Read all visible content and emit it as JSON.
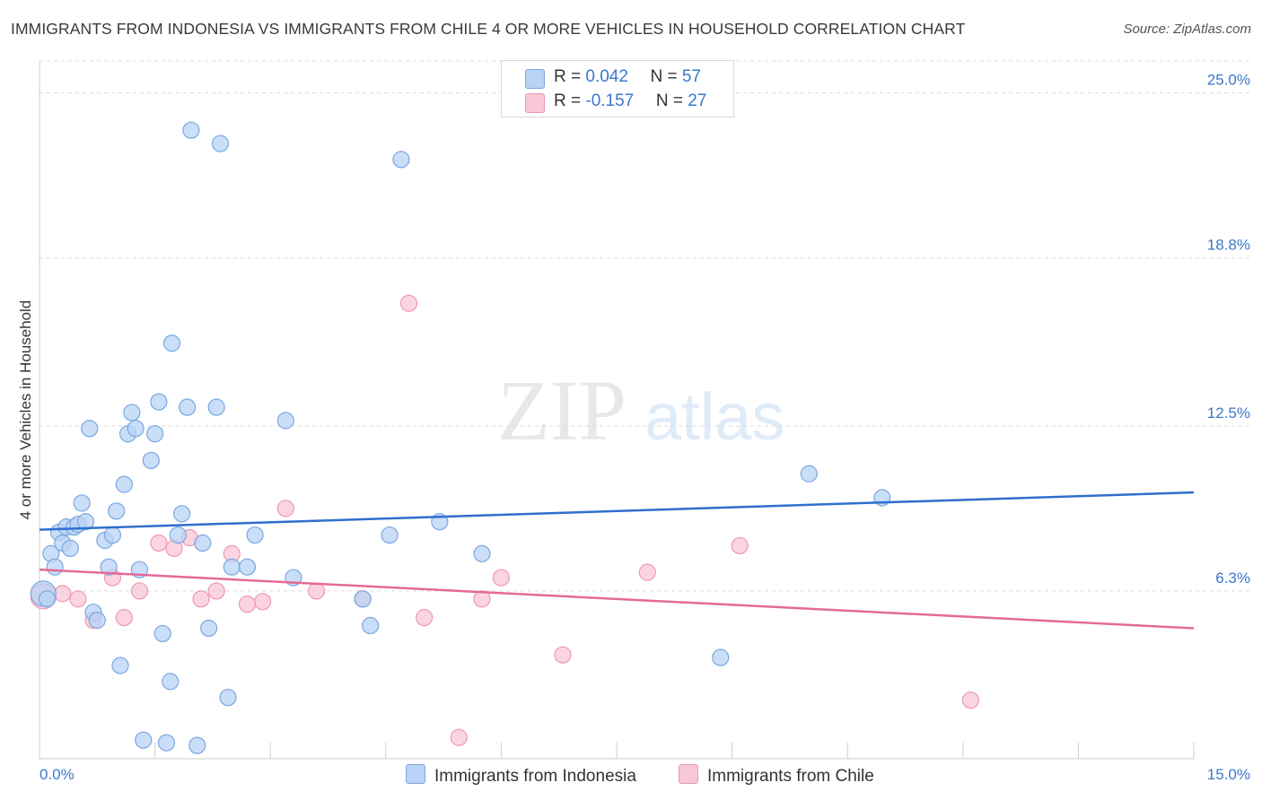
{
  "title": "IMMIGRANTS FROM INDONESIA VS IMMIGRANTS FROM CHILE 4 OR MORE VEHICLES IN HOUSEHOLD CORRELATION CHART",
  "source": "Source: ZipAtlas.com",
  "watermark": {
    "zip": "ZIP",
    "atlas": "atlas"
  },
  "colors": {
    "blue_fill": "#b8d3f5",
    "blue_stroke": "#7ba7e0",
    "blue_line": "#2f6fcf",
    "pink_fill": "#f8c7d6",
    "pink_stroke": "#ee97b3",
    "pink_line": "#e46a96",
    "tick_text": "#3a78c9",
    "grid": "#dcdcdc"
  },
  "legend": {
    "row1": {
      "r_label": "R = ",
      "r_value": "0.042",
      "n_label": "N = ",
      "n_value": "57"
    },
    "row2": {
      "r_label": "R = ",
      "r_value": "-0.157",
      "n_label": "N = ",
      "n_value": "27"
    }
  },
  "bottom_legend": {
    "series1": "Immigrants from Indonesia",
    "series2": "Immigrants from Chile"
  },
  "chart_data": {
    "type": "scatter",
    "title": "IMMIGRANTS FROM INDONESIA VS IMMIGRANTS FROM CHILE 4 OR MORE VEHICLES IN HOUSEHOLD CORRELATION CHART",
    "xlabel": "",
    "ylabel": "4 or more Vehicles in Household",
    "xlim": [
      0,
      15
    ],
    "ylim": [
      0,
      26.2
    ],
    "x_tick_labels": {
      "min": "0.0%",
      "max": "15.0%"
    },
    "y_ticks": [
      6.3,
      12.5,
      18.8,
      25.0
    ],
    "y_tick_labels": [
      "6.3%",
      "12.5%",
      "18.8%",
      "25.0%"
    ],
    "series": [
      {
        "name": "Immigrants from Indonesia",
        "r": 0.042,
        "n": 57,
        "trend": {
          "x": [
            0,
            15
          ],
          "y": [
            8.6,
            10.0
          ]
        },
        "points": [
          [
            0.05,
            6.2,
            14
          ],
          [
            0.15,
            7.7,
            9
          ],
          [
            0.2,
            7.2,
            9
          ],
          [
            0.25,
            8.5,
            9
          ],
          [
            0.3,
            8.1,
            9
          ],
          [
            0.35,
            8.7,
            9
          ],
          [
            0.4,
            7.9,
            9
          ],
          [
            0.45,
            8.7,
            9
          ],
          [
            0.5,
            8.8,
            9
          ],
          [
            0.55,
            9.6,
            9
          ],
          [
            0.6,
            8.9,
            9
          ],
          [
            0.65,
            12.4,
            9
          ],
          [
            0.7,
            5.5,
            9
          ],
          [
            0.75,
            5.2,
            9
          ],
          [
            0.85,
            8.2,
            9
          ],
          [
            0.9,
            7.2,
            9
          ],
          [
            0.95,
            8.4,
            9
          ],
          [
            1.0,
            9.3,
            9
          ],
          [
            1.05,
            3.5,
            9
          ],
          [
            1.1,
            10.3,
            9
          ],
          [
            1.15,
            12.2,
            9
          ],
          [
            1.2,
            13.0,
            9
          ],
          [
            1.25,
            12.4,
            9
          ],
          [
            1.3,
            7.1,
            9
          ],
          [
            1.35,
            0.7,
            9
          ],
          [
            1.45,
            11.2,
            9
          ],
          [
            1.5,
            12.2,
            9
          ],
          [
            1.55,
            13.4,
            9
          ],
          [
            1.6,
            4.7,
            9
          ],
          [
            1.65,
            0.6,
            9
          ],
          [
            1.7,
            2.9,
            9
          ],
          [
            1.72,
            15.6,
            9
          ],
          [
            1.8,
            8.4,
            9
          ],
          [
            1.85,
            9.2,
            9
          ],
          [
            1.92,
            13.2,
            9
          ],
          [
            1.97,
            23.6,
            9
          ],
          [
            2.05,
            0.5,
            9
          ],
          [
            2.12,
            8.1,
            9
          ],
          [
            2.2,
            4.9,
            9
          ],
          [
            2.3,
            13.2,
            9
          ],
          [
            2.35,
            23.1,
            9
          ],
          [
            2.45,
            2.3,
            9
          ],
          [
            2.5,
            7.2,
            9
          ],
          [
            2.7,
            7.2,
            9
          ],
          [
            2.8,
            8.4,
            9
          ],
          [
            3.2,
            12.7,
            9
          ],
          [
            3.3,
            6.8,
            9
          ],
          [
            4.2,
            6.0,
            9
          ],
          [
            4.3,
            5.0,
            9
          ],
          [
            4.55,
            8.4,
            9
          ],
          [
            4.7,
            22.5,
            9
          ],
          [
            5.2,
            8.9,
            9
          ],
          [
            5.75,
            7.7,
            9
          ],
          [
            8.85,
            3.8,
            9
          ],
          [
            10.0,
            10.7,
            9
          ],
          [
            10.95,
            9.8,
            9
          ],
          [
            0.1,
            6.0,
            9
          ]
        ]
      },
      {
        "name": "Immigrants from Chile",
        "r": -0.157,
        "n": 27,
        "trend": {
          "x": [
            0,
            15
          ],
          "y": [
            7.1,
            4.9
          ]
        },
        "points": [
          [
            0.05,
            6.1,
            14
          ],
          [
            0.3,
            6.2,
            9
          ],
          [
            0.5,
            6.0,
            9
          ],
          [
            0.7,
            5.2,
            9
          ],
          [
            0.95,
            6.8,
            9
          ],
          [
            1.1,
            5.3,
            9
          ],
          [
            1.3,
            6.3,
            9
          ],
          [
            1.55,
            8.1,
            9
          ],
          [
            1.75,
            7.9,
            9
          ],
          [
            1.95,
            8.3,
            9
          ],
          [
            2.1,
            6.0,
            9
          ],
          [
            2.3,
            6.3,
            9
          ],
          [
            2.5,
            7.7,
            9
          ],
          [
            2.7,
            5.8,
            9
          ],
          [
            2.9,
            5.9,
            9
          ],
          [
            3.2,
            9.4,
            9
          ],
          [
            3.6,
            6.3,
            9
          ],
          [
            4.2,
            6.0,
            9
          ],
          [
            4.8,
            17.1,
            9
          ],
          [
            5.0,
            5.3,
            9
          ],
          [
            5.45,
            0.8,
            9
          ],
          [
            5.75,
            6.0,
            9
          ],
          [
            6.0,
            6.8,
            9
          ],
          [
            6.8,
            3.9,
            9
          ],
          [
            7.9,
            7.0,
            9
          ],
          [
            9.1,
            8.0,
            9
          ],
          [
            12.1,
            2.2,
            9
          ]
        ]
      }
    ]
  }
}
